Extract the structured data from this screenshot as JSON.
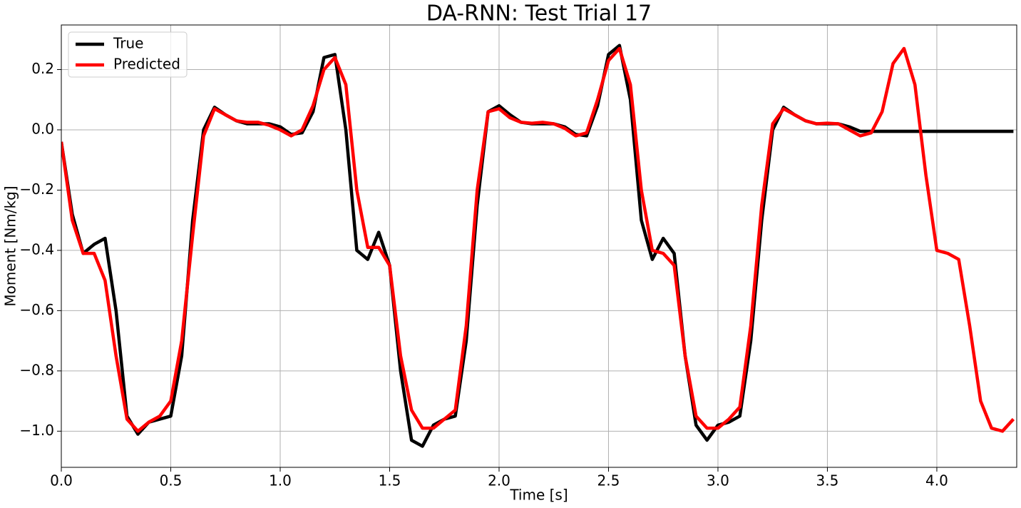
{
  "chart_data": {
    "type": "line",
    "title": "DA-RNN: Test Trial 17",
    "x_label": "Time [s]",
    "y_label": "Moment [Nm/kg]",
    "x": [
      0,
      0.05,
      0.1,
      0.15,
      0.2,
      0.25,
      0.3,
      0.35,
      0.4,
      0.45,
      0.5,
      0.55,
      0.6,
      0.65,
      0.7,
      0.75,
      0.8,
      0.85,
      0.9,
      0.95,
      1,
      1.05,
      1.1,
      1.15,
      1.2,
      1.25,
      1.3,
      1.35,
      1.4,
      1.45,
      1.5,
      1.55,
      1.6,
      1.65,
      1.7,
      1.75,
      1.8,
      1.85,
      1.9,
      1.95,
      2,
      2.05,
      2.1,
      2.15,
      2.2,
      2.25,
      2.3,
      2.35,
      2.4,
      2.45,
      2.5,
      2.55,
      2.6,
      2.65,
      2.7,
      2.75,
      2.8,
      2.85,
      2.9,
      2.95,
      3,
      3.05,
      3.1,
      3.15,
      3.2,
      3.25,
      3.3,
      3.35,
      3.4,
      3.45,
      3.5,
      3.55,
      3.6,
      3.65,
      3.7,
      3.75,
      3.8,
      3.85,
      3.9,
      3.95,
      4,
      4.05,
      4.1,
      4.15,
      4.2,
      4.25,
      4.3,
      4.35
    ],
    "series": [
      {
        "name": "True",
        "color": "#000000",
        "values": [
          -0.04,
          -0.28,
          -0.41,
          -0.38,
          -0.36,
          -0.6,
          -0.95,
          -1.01,
          -0.97,
          -0.96,
          -0.95,
          -0.75,
          -0.3,
          0.0,
          0.075,
          0.05,
          0.03,
          0.02,
          0.02,
          0.02,
          0.01,
          -0.015,
          -0.01,
          0.06,
          0.24,
          0.25,
          0.0,
          -0.4,
          -0.43,
          -0.34,
          -0.45,
          -0.8,
          -1.03,
          -1.05,
          -0.98,
          -0.96,
          -0.95,
          -0.7,
          -0.25,
          0.06,
          0.08,
          0.05,
          0.025,
          0.02,
          0.02,
          0.02,
          0.01,
          -0.015,
          -0.02,
          0.08,
          0.25,
          0.28,
          0.1,
          -0.3,
          -0.43,
          -0.36,
          -0.41,
          -0.75,
          -0.98,
          -1.03,
          -0.98,
          -0.97,
          -0.95,
          -0.7,
          -0.3,
          0.0,
          0.075,
          0.05,
          0.03,
          0.02,
          0.02,
          0.02,
          0.01,
          -0.005,
          -0.005,
          -0.005,
          -0.005,
          -0.005,
          -0.005,
          -0.005,
          -0.005,
          -0.005,
          -0.005,
          -0.005,
          -0.005,
          -0.005,
          -0.005,
          -0.005
        ]
      },
      {
        "name": "Predicted",
        "color": "#ff0000",
        "values": [
          -0.04,
          -0.3,
          -0.41,
          -0.41,
          -0.5,
          -0.75,
          -0.96,
          -1.0,
          -0.97,
          -0.95,
          -0.9,
          -0.7,
          -0.35,
          -0.02,
          0.07,
          0.05,
          0.03,
          0.025,
          0.025,
          0.015,
          0.0,
          -0.02,
          0.0,
          0.08,
          0.2,
          0.24,
          0.15,
          -0.2,
          -0.39,
          -0.39,
          -0.45,
          -0.75,
          -0.93,
          -0.99,
          -0.99,
          -0.96,
          -0.93,
          -0.65,
          -0.2,
          0.06,
          0.07,
          0.04,
          0.025,
          0.022,
          0.025,
          0.02,
          0.005,
          -0.02,
          -0.01,
          0.1,
          0.23,
          0.27,
          0.15,
          -0.2,
          -0.4,
          -0.41,
          -0.45,
          -0.75,
          -0.95,
          -0.99,
          -0.99,
          -0.96,
          -0.92,
          -0.65,
          -0.25,
          0.02,
          0.07,
          0.05,
          0.03,
          0.02,
          0.022,
          0.02,
          0.0,
          -0.02,
          -0.01,
          0.06,
          0.22,
          0.27,
          0.15,
          -0.15,
          -0.4,
          -0.41,
          -0.43,
          -0.65,
          -0.9,
          -0.99,
          -1.0,
          -0.96
        ]
      }
    ],
    "xlim": [
      0,
      4.365
    ],
    "ylim": [
      -1.12,
      0.348
    ],
    "xticks": [
      {
        "value": 0,
        "label": "0.0"
      },
      0.5,
      {
        "value": 1,
        "label": "1.0"
      },
      1.5,
      {
        "value": 2,
        "label": "2.0"
      },
      2.5,
      {
        "value": 3,
        "label": "3.0"
      },
      3.5,
      {
        "value": 4,
        "label": "4.0"
      }
    ],
    "yticks": [
      {
        "value": -1,
        "label": "−1.0"
      },
      {
        "value": -0.8,
        "label": "−0.8"
      },
      {
        "value": -0.6,
        "label": "−0.6"
      },
      {
        "value": -0.4,
        "label": "−0.4"
      },
      {
        "value": -0.2,
        "label": "−0.2"
      },
      {
        "value": 0,
        "label": "0.0"
      },
      0.2
    ],
    "grid": true,
    "legend": "upper left"
  }
}
